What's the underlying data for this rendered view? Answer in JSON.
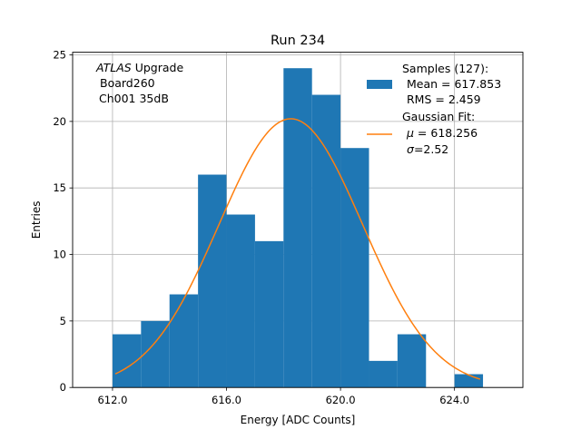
{
  "chart_data": {
    "type": "bar",
    "title": "Run 234",
    "xlabel": "Energy [ADC Counts]",
    "ylabel": "Entries",
    "xlim": [
      610.6,
      626.4
    ],
    "ylim": [
      0,
      25.2
    ],
    "xticks": [
      612.0,
      616.0,
      620.0,
      624.0
    ],
    "xtick_labels": [
      "612.0",
      "616.0",
      "620.0",
      "624.0"
    ],
    "yticks": [
      0,
      5,
      10,
      15,
      20,
      25
    ],
    "ytick_labels": [
      "0",
      "5",
      "10",
      "15",
      "20",
      "25"
    ],
    "grid": true,
    "bar_color": "#1f77b4",
    "fit_color": "#ff7f0e",
    "bins": [
      {
        "x0": 612,
        "x1": 613,
        "count": 4
      },
      {
        "x0": 613,
        "x1": 614,
        "count": 5
      },
      {
        "x0": 614,
        "x1": 615,
        "count": 7
      },
      {
        "x0": 615,
        "x1": 616,
        "count": 16
      },
      {
        "x0": 616,
        "x1": 617,
        "count": 13
      },
      {
        "x0": 617,
        "x1": 618,
        "count": 11
      },
      {
        "x0": 618,
        "x1": 619,
        "count": 24
      },
      {
        "x0": 619,
        "x1": 620,
        "count": 22
      },
      {
        "x0": 620,
        "x1": 621,
        "count": 18
      },
      {
        "x0": 621,
        "x1": 622,
        "count": 2
      },
      {
        "x0": 622,
        "x1": 623,
        "count": 4
      },
      {
        "x0": 623,
        "x1": 624,
        "count": 0
      },
      {
        "x0": 624,
        "x1": 625,
        "count": 1
      }
    ],
    "fit": {
      "mu": 618.256,
      "sigma": 2.52,
      "amplitude": 20.2,
      "x_range": [
        612.1,
        624.9
      ]
    },
    "annotation": {
      "atlas": "ATLAS",
      "upgrade": " Upgrade",
      "line2": "Board260",
      "line3": "Ch001 35dB"
    },
    "legend": {
      "placement": "top-right",
      "samples_title": "Samples (127):",
      "samples_mean": "Mean = 617.853",
      "samples_rms": "RMS = 2.459",
      "fit_title": "Gaussian Fit:",
      "fit_mu_symbol": "μ",
      "fit_mu_value": " = 618.256",
      "fit_sigma_symbol": "σ",
      "fit_sigma_value": "=2.52"
    }
  }
}
